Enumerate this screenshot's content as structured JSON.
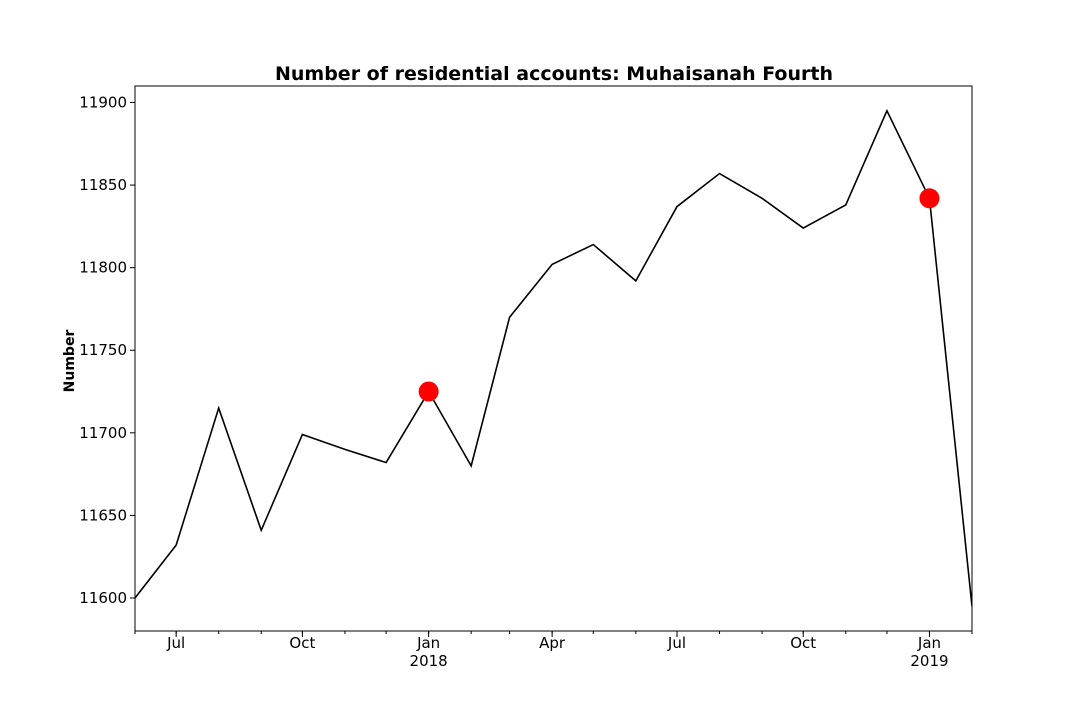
{
  "chart_data": {
    "type": "line",
    "title": "Number of residential accounts: Muhaisanah Fourth",
    "xlabel": "",
    "ylabel": "Number",
    "x_axis": {
      "type": "date",
      "xlim": [
        "2017-06-01",
        "2019-02-01"
      ],
      "major_ticks": [
        {
          "date": "2017-07-01",
          "label": "Jul",
          "sublabel": ""
        },
        {
          "date": "2017-10-01",
          "label": "Oct",
          "sublabel": ""
        },
        {
          "date": "2018-01-01",
          "label": "Jan",
          "sublabel": "2018"
        },
        {
          "date": "2018-04-01",
          "label": "Apr",
          "sublabel": ""
        },
        {
          "date": "2018-07-01",
          "label": "Jul",
          "sublabel": ""
        },
        {
          "date": "2018-10-01",
          "label": "Oct",
          "sublabel": ""
        },
        {
          "date": "2019-01-01",
          "label": "Jan",
          "sublabel": "2019"
        }
      ]
    },
    "y_axis": {
      "ylim": [
        11580,
        11910
      ],
      "ticks": [
        11600,
        11650,
        11700,
        11750,
        11800,
        11850,
        11900
      ]
    },
    "grid": false,
    "legend": "none",
    "line_color": "#000000",
    "marker_color": "#ff0000",
    "series": [
      {
        "x": [
          "2017-06-01",
          "2017-07-01",
          "2017-08-01",
          "2017-09-01",
          "2017-10-01",
          "2017-11-01",
          "2017-12-01",
          "2018-01-01",
          "2018-02-01",
          "2018-03-01",
          "2018-04-01",
          "2018-05-01",
          "2018-06-01",
          "2018-07-01",
          "2018-08-01",
          "2018-09-01",
          "2018-10-01",
          "2018-11-01",
          "2018-12-01",
          "2019-01-01",
          "2019-02-01"
        ],
        "values": [
          11600,
          11632,
          11715,
          11641,
          11699,
          11690,
          11682,
          11725,
          11680,
          11770,
          11802,
          11814,
          11792,
          11837,
          11857,
          11842,
          11824,
          11838,
          11895,
          11842,
          11595
        ]
      }
    ],
    "highlighted_points": [
      {
        "x": "2018-01-01",
        "y": 11725
      },
      {
        "x": "2019-01-01",
        "y": 11842
      }
    ]
  }
}
